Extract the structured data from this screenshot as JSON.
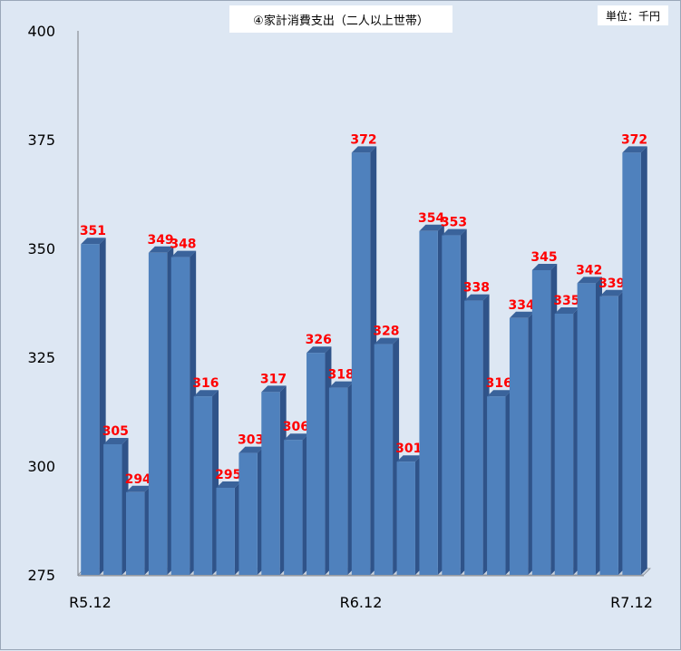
{
  "chart_data": {
    "type": "bar",
    "title": "④家計消費支出（二人以上世帯）",
    "unit": "単位：千円",
    "ylim": [
      275,
      400
    ],
    "yticks": [
      275,
      300,
      325,
      350,
      375,
      400
    ],
    "categories": [
      "R5.12",
      "",
      "",
      "",
      "",
      "",
      "",
      "",
      "",
      "",
      "",
      "",
      "R6.12",
      "",
      "",
      "",
      "",
      "",
      "",
      "",
      "",
      "",
      "",
      "",
      "R7.12"
    ],
    "values": [
      351,
      305,
      294,
      349,
      348,
      316,
      295,
      303,
      317,
      306,
      326,
      318,
      372,
      328,
      301,
      354,
      353,
      338,
      316,
      334,
      345,
      335,
      342,
      339,
      372
    ],
    "grid": false,
    "legend": "none",
    "colors": {
      "bar_front": "#4f81bd",
      "bar_side": "#2f5389",
      "bar_top": "#3a639b",
      "label": "#ff0000",
      "background": "#dde7f3"
    }
  }
}
